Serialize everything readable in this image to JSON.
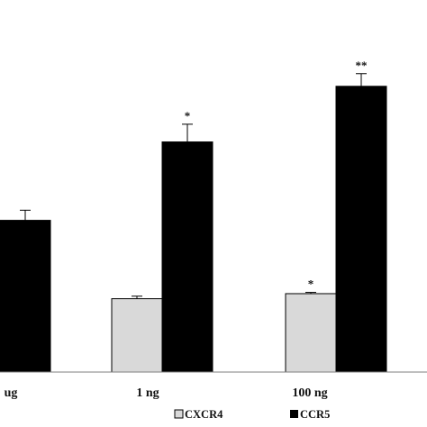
{
  "chart_data": {
    "type": "bar",
    "title": "",
    "xlabel": "",
    "ylabel": "",
    "categories": [
      "ug",
      "1 ng",
      "100 ng"
    ],
    "ylim": [
      0,
      1.4
    ],
    "series": [
      {
        "name": "CXCR4",
        "color": "#d9d9d9",
        "values": [
          null,
          0.29,
          0.31
        ],
        "errors": [
          null,
          0.01,
          0.005
        ],
        "significance": [
          "",
          "",
          "*"
        ]
      },
      {
        "name": "CCR5",
        "color": "#000000",
        "values": [
          0.6,
          0.91,
          1.13
        ],
        "errors": [
          0.04,
          0.07,
          0.05
        ],
        "significance": [
          "",
          "*",
          "**"
        ]
      }
    ],
    "legend_position": "bottom-right",
    "grid": false
  }
}
